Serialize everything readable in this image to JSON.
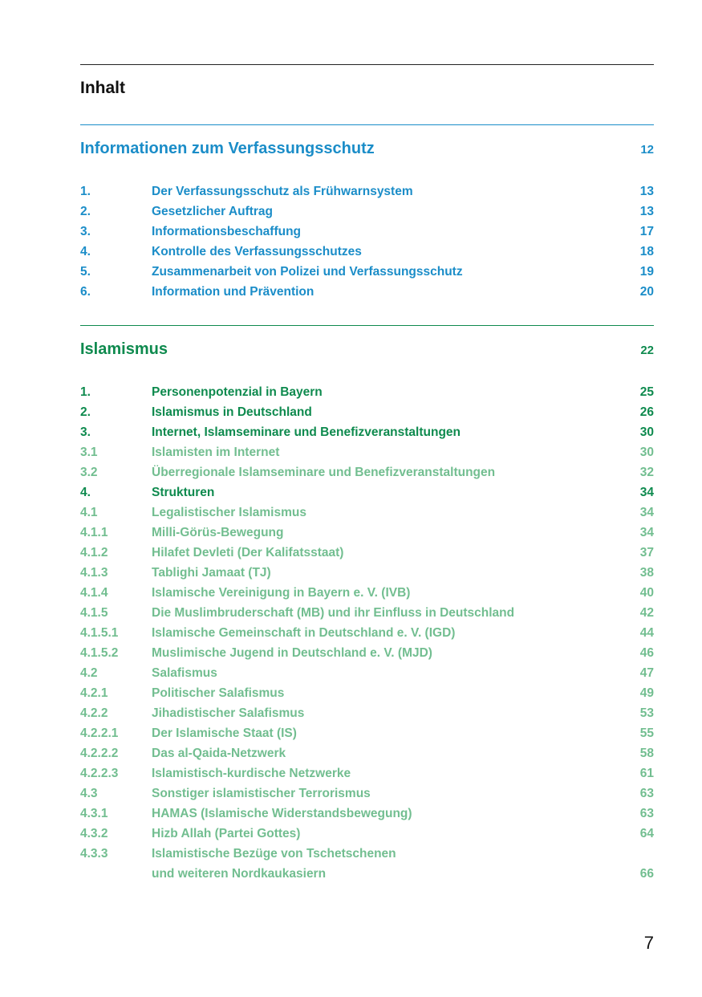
{
  "title": "Inhalt",
  "colors": {
    "blue": "#1b8dc8",
    "green_dark": "#0e8a4e",
    "green_light": "#72be90"
  },
  "sections": [
    {
      "title": "Informationen zum Verfassungsschutz",
      "page": "12",
      "entries": [
        {
          "num": "1.",
          "label": "Der Verfassungsschutz als Frühwarnsystem",
          "page": "13",
          "level": 1
        },
        {
          "num": "2.",
          "label": "Gesetzlicher Auftrag",
          "page": "13",
          "level": 1
        },
        {
          "num": "3.",
          "label": "Informationsbeschaffung",
          "page": "17",
          "level": 1
        },
        {
          "num": "4.",
          "label": "Kontrolle des Verfassungsschutzes",
          "page": "18",
          "level": 1
        },
        {
          "num": "5.",
          "label": "Zusammenarbeit von Polizei und Verfassungsschutz",
          "page": "19",
          "level": 1
        },
        {
          "num": "6.",
          "label": "Information und Prävention",
          "page": "20",
          "level": 1
        }
      ]
    },
    {
      "title": "Islamismus",
      "page": "22",
      "entries": [
        {
          "num": "1.",
          "label": "Personenpotenzial in Bayern",
          "page": "25",
          "level": 1
        },
        {
          "num": "2.",
          "label": "Islamismus in Deutschland",
          "page": "26",
          "level": 1
        },
        {
          "num": "3.",
          "label": "Internet, Islamseminare und Benefizveranstaltungen",
          "page": "30",
          "level": 1
        },
        {
          "num": "3.1",
          "label": "Islamisten im Internet",
          "page": "30",
          "level": 2
        },
        {
          "num": "3.2",
          "label": "Überregionale Islamseminare und Benefizveranstaltungen",
          "page": "32",
          "level": 2
        },
        {
          "num": "4.",
          "label": "Strukturen",
          "page": "34",
          "level": 1
        },
        {
          "num": "4.1",
          "label": "Legalistischer Islamismus",
          "page": "34",
          "level": 2
        },
        {
          "num": "4.1.1",
          "label": "Milli-Görüs-Bewegung",
          "page": "34",
          "level": 2
        },
        {
          "num": "4.1.2",
          "label": "Hilafet Devleti (Der Kalifatsstaat)",
          "page": "37",
          "level": 2
        },
        {
          "num": "4.1.3",
          "label": "Tablighi Jamaat (TJ)",
          "page": "38",
          "level": 2
        },
        {
          "num": "4.1.4",
          "label": "Islamische Vereinigung in Bayern e. V. (IVB)",
          "page": "40",
          "level": 2
        },
        {
          "num": "4.1.5",
          "label": "Die Muslimbruderschaft (MB) und ihr Einfluss in Deutschland",
          "page": "42",
          "level": 2
        },
        {
          "num": "4.1.5.1",
          "label": "Islamische Gemeinschaft in Deutschland e. V. (IGD)",
          "page": "44",
          "level": 2
        },
        {
          "num": "4.1.5.2",
          "label": "Muslimische Jugend in Deutschland e. V. (MJD)",
          "page": "46",
          "level": 2
        },
        {
          "num": "4.2",
          "label": "Salafismus",
          "page": "47",
          "level": 2
        },
        {
          "num": "4.2.1",
          "label": "Politischer Salafismus",
          "page": "49",
          "level": 2
        },
        {
          "num": "4.2.2",
          "label": "Jihadistischer Salafismus",
          "page": "53",
          "level": 2
        },
        {
          "num": "4.2.2.1",
          "label": "Der Islamische Staat (IS)",
          "page": "55",
          "level": 2
        },
        {
          "num": "4.2.2.2",
          "label": "Das al-Qaida-Netzwerk",
          "page": "58",
          "level": 2
        },
        {
          "num": "4.2.2.3",
          "label": "Islamistisch-kurdische Netzwerke",
          "page": "61",
          "level": 2
        },
        {
          "num": "4.3",
          "label": "Sonstiger islamistischer Terrorismus",
          "page": "63",
          "level": 2
        },
        {
          "num": "4.3.1",
          "label": "HAMAS (Islamische Widerstandsbewegung)",
          "page": "63",
          "level": 2
        },
        {
          "num": "4.3.2",
          "label": "Hizb Allah (Partei Gottes)",
          "page": "64",
          "level": 2
        },
        {
          "num": "4.3.3",
          "label": "Islamistische Bezüge von Tschetschenen",
          "page": "",
          "level": 2
        },
        {
          "num": "",
          "label": "und weiteren Nordkaukasiern",
          "page": "66",
          "level": 2
        }
      ]
    }
  ],
  "page_number": "7"
}
